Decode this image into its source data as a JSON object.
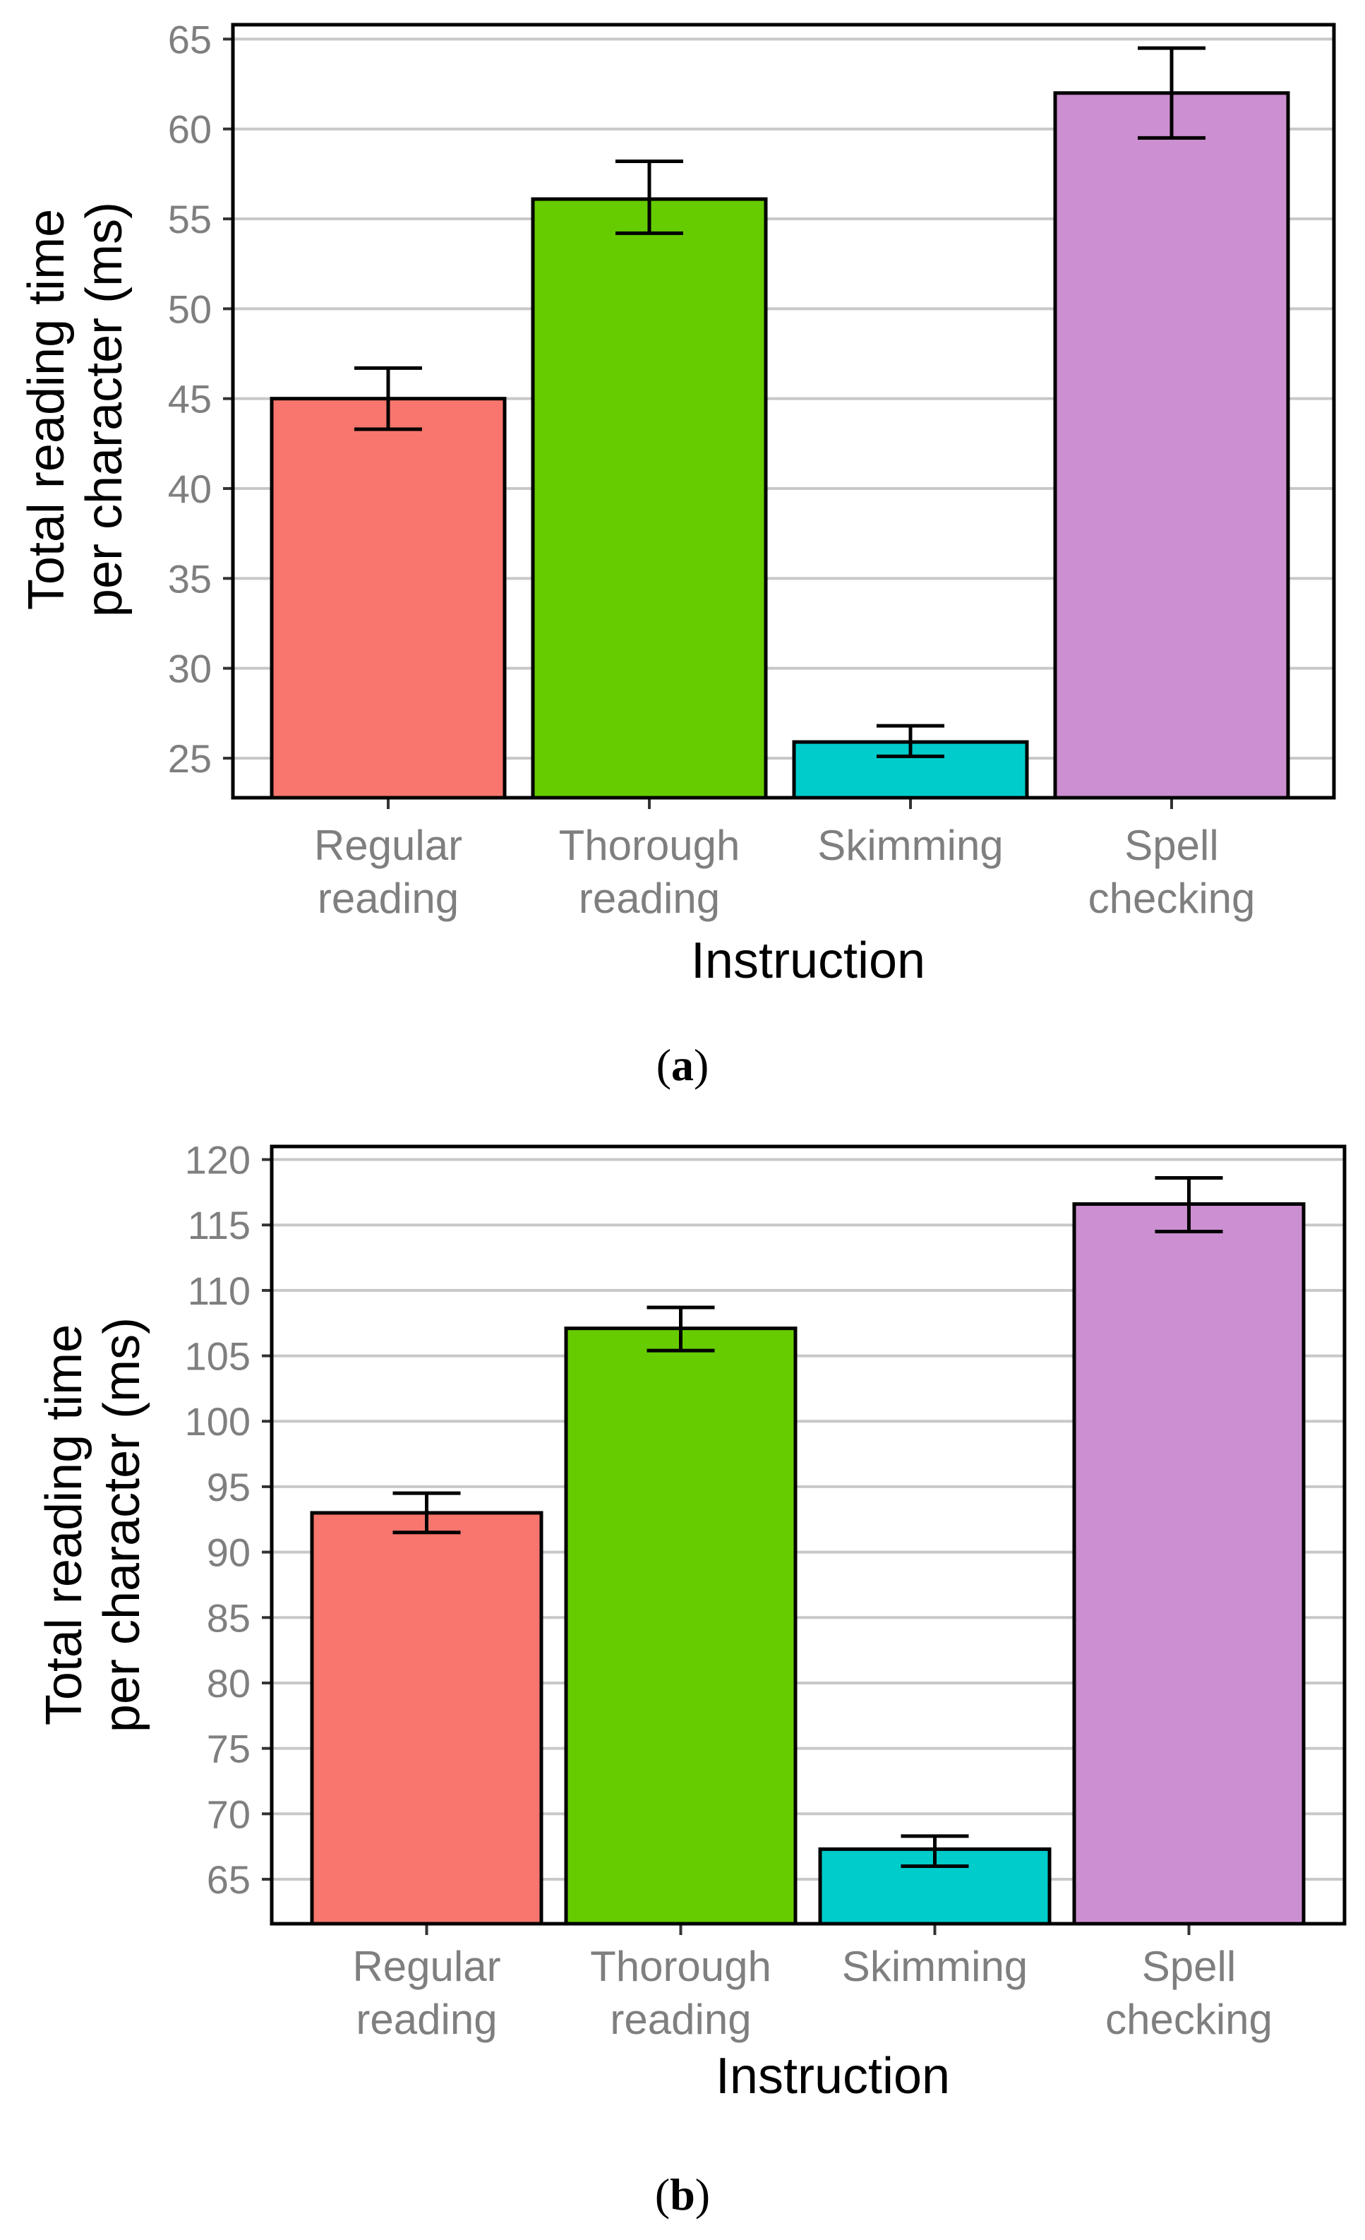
{
  "chart_data": [
    {
      "type": "bar",
      "caption": "a",
      "categories": [
        [
          "Regular",
          "reading"
        ],
        [
          "Thorough",
          "reading"
        ],
        [
          "Skimming"
        ],
        [
          "Spell",
          "checking"
        ]
      ],
      "values": [
        45.0,
        56.1,
        25.9,
        62.0
      ],
      "error_low": [
        43.3,
        54.2,
        25.1,
        59.5
      ],
      "error_high": [
        46.7,
        58.2,
        26.8,
        64.5
      ],
      "colors": [
        "#f8766d",
        "#66cc00",
        "#00cccc",
        "#cc8fd1"
      ],
      "xlabel": "Instruction",
      "ylabel": [
        "Total reading time",
        "per character (ms)"
      ],
      "ylim": [
        22.8,
        65.8
      ],
      "yticks": [
        25,
        30,
        35,
        40,
        45,
        50,
        55,
        60,
        65
      ],
      "grid": true,
      "legend": "none"
    },
    {
      "type": "bar",
      "caption": "b",
      "categories": [
        [
          "Regular",
          "reading"
        ],
        [
          "Thorough",
          "reading"
        ],
        [
          "Skimming"
        ],
        [
          "Spell",
          "checking"
        ]
      ],
      "values": [
        93.0,
        107.1,
        67.3,
        116.6
      ],
      "error_low": [
        91.5,
        105.4,
        66.0,
        114.5
      ],
      "error_high": [
        94.5,
        108.7,
        68.3,
        118.6
      ],
      "colors": [
        "#f8766d",
        "#66cc00",
        "#00cccc",
        "#cc8fd1"
      ],
      "xlabel": "Instruction",
      "ylabel": [
        "Total reading time",
        "per character (ms)"
      ],
      "ylim": [
        61.6,
        121
      ],
      "yticks": [
        65,
        70,
        75,
        80,
        85,
        90,
        95,
        100,
        105,
        110,
        115,
        120
      ],
      "grid": true,
      "legend": "none"
    }
  ]
}
